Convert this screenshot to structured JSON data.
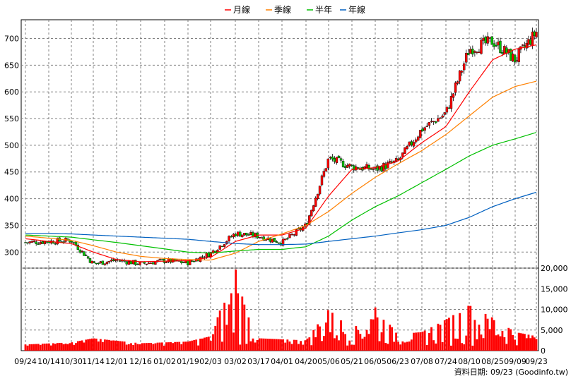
{
  "legend": [
    {
      "name": "月線",
      "color": "#ff0000"
    },
    {
      "name": "季線",
      "color": "#ff8000"
    },
    {
      "name": "半年",
      "color": "#00c000"
    },
    {
      "name": "年線",
      "color": "#0060c0"
    }
  ],
  "source_note": "資料日期: 09/23  (Goodinfo.tw)",
  "chart_data": [
    {
      "type": "candlestick",
      "title": "",
      "ylim": [
        270,
        735
      ],
      "y_ticks": [
        300,
        350,
        400,
        450,
        500,
        550,
        600,
        650,
        700
      ],
      "x_tick_labels": [
        "09/24",
        "10/14",
        "10/30",
        "11/14",
        "12/01",
        "12/16",
        "01/02",
        "01/19",
        "02/03",
        "03/02",
        "03/17",
        "04/01",
        "04/20",
        "05/06",
        "05/21",
        "06/05",
        "06/23",
        "07/08",
        "07/24",
        "08/10",
        "08/25",
        "09/09",
        "09/23"
      ],
      "up_color": "#ff0000",
      "down_color": "#00c000",
      "anchors": [
        {
          "label": "09/24",
          "close": 318
        },
        {
          "label": "10/14",
          "close": 320
        },
        {
          "label": "10/30",
          "close": 322
        },
        {
          "label": "11/14",
          "close": 278
        },
        {
          "label": "12/01",
          "close": 285
        },
        {
          "label": "12/16",
          "close": 278
        },
        {
          "label": "01/02",
          "close": 284
        },
        {
          "label": "01/19",
          "close": 280
        },
        {
          "label": "02/03",
          "close": 298
        },
        {
          "label": "03/02",
          "close": 335
        },
        {
          "label": "03/17",
          "close": 330
        },
        {
          "label": "04/01",
          "close": 318
        },
        {
          "label": "04/20",
          "close": 350
        },
        {
          "label": "05/06",
          "close": 475
        },
        {
          "label": "05/21",
          "close": 460
        },
        {
          "label": "06/05",
          "close": 455
        },
        {
          "label": "06/23",
          "close": 470
        },
        {
          "label": "07/08",
          "close": 530
        },
        {
          "label": "07/24",
          "close": 560
        },
        {
          "label": "08/10",
          "close": 680
        },
        {
          "label": "08/25",
          "close": 695
        },
        {
          "label": "09/09",
          "close": 660
        },
        {
          "label": "09/23",
          "close": 712
        }
      ],
      "series": [
        {
          "name": "月線",
          "color": "#ff0000",
          "values": [
            325,
            320,
            316,
            300,
            286,
            282,
            283,
            284,
            290,
            320,
            332,
            332,
            345,
            405,
            455,
            458,
            470,
            505,
            535,
            600,
            660,
            680,
            688
          ]
        },
        {
          "name": "季線",
          "color": "#ff8000",
          "values": [
            330,
            326,
            322,
            312,
            300,
            292,
            288,
            286,
            285,
            298,
            320,
            334,
            350,
            376,
            410,
            440,
            465,
            490,
            520,
            555,
            590,
            610,
            620
          ]
        },
        {
          "name": "半年",
          "color": "#00c000",
          "values": [
            332,
            330,
            328,
            323,
            318,
            312,
            306,
            300,
            298,
            302,
            305,
            305,
            310,
            330,
            360,
            385,
            405,
            430,
            455,
            480,
            500,
            512,
            524
          ]
        },
        {
          "name": "年線",
          "color": "#0060c0",
          "values": [
            335,
            335,
            334,
            332,
            330,
            328,
            326,
            324,
            320,
            316,
            314,
            314,
            315,
            320,
            325,
            330,
            336,
            342,
            350,
            365,
            385,
            400,
            412
          ]
        }
      ]
    },
    {
      "type": "bar",
      "title": "",
      "ylim": [
        0,
        20000
      ],
      "y_ticks": [
        0,
        5000,
        10000,
        15000,
        20000
      ],
      "y_tick_labels": [
        "0",
        "5,000",
        "10,000",
        "15,000",
        "20,000"
      ],
      "color": "#ff0000",
      "anchors": [
        {
          "label": "09/24",
          "volume": 1500
        },
        {
          "label": "10/30",
          "volume": 2000
        },
        {
          "label": "11/14",
          "volume": 3000
        },
        {
          "label": "12/16",
          "volume": 1800
        },
        {
          "label": "01/19",
          "volume": 2200
        },
        {
          "label": "02/03",
          "volume": 3500
        },
        {
          "label": "03/02",
          "volume": 20000
        },
        {
          "label": "03/17",
          "volume": 3000
        },
        {
          "label": "04/20",
          "volume": 2500
        },
        {
          "label": "05/06",
          "volume": 10000
        },
        {
          "label": "05/21",
          "volume": 5000
        },
        {
          "label": "06/05",
          "volume": 10500
        },
        {
          "label": "06/23",
          "volume": 4000
        },
        {
          "label": "07/08",
          "volume": 4500
        },
        {
          "label": "07/24",
          "volume": 7500
        },
        {
          "label": "08/10",
          "volume": 11000
        },
        {
          "label": "08/25",
          "volume": 8000
        },
        {
          "label": "09/09",
          "volume": 4500
        },
        {
          "label": "09/23",
          "volume": 3500
        }
      ]
    }
  ]
}
